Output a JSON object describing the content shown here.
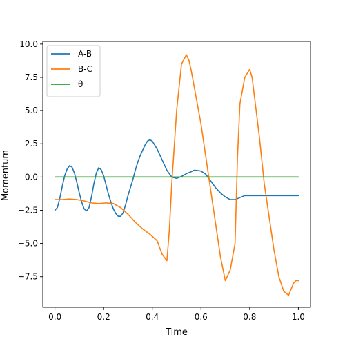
{
  "chart_data": {
    "type": "line",
    "title": "",
    "xlabel": "Time",
    "ylabel": "Momentum",
    "xlim": [
      -0.05,
      1.05
    ],
    "ylim": [
      -9.8,
      10.2
    ],
    "xticks": [
      {
        "value": 0.0,
        "label": "0.0"
      },
      {
        "value": 0.2,
        "label": "0.2"
      },
      {
        "value": 0.4,
        "label": "0.4"
      },
      {
        "value": 0.6,
        "label": "0.6"
      },
      {
        "value": 0.8,
        "label": "0.8"
      },
      {
        "value": 1.0,
        "label": "1.0"
      }
    ],
    "yticks": [
      {
        "value": -7.5,
        "label": "−7.5"
      },
      {
        "value": -5.0,
        "label": "−5.0"
      },
      {
        "value": -2.5,
        "label": "−2.5"
      },
      {
        "value": 0.0,
        "label": "0.0"
      },
      {
        "value": 2.5,
        "label": "2.5"
      },
      {
        "value": 5.0,
        "label": "5.0"
      },
      {
        "value": 7.5,
        "label": "7.5"
      },
      {
        "value": 10.0,
        "label": "10.0"
      }
    ],
    "grid": false,
    "legend_position": "top-left",
    "series": [
      {
        "name": "A-B",
        "color": "#1f77b4",
        "x": [
          0.0,
          0.01,
          0.02,
          0.03,
          0.04,
          0.05,
          0.06,
          0.07,
          0.08,
          0.09,
          0.1,
          0.11,
          0.12,
          0.13,
          0.14,
          0.15,
          0.16,
          0.17,
          0.18,
          0.19,
          0.2,
          0.21,
          0.22,
          0.23,
          0.24,
          0.25,
          0.26,
          0.27,
          0.28,
          0.29,
          0.3,
          0.31,
          0.32,
          0.33,
          0.34,
          0.35,
          0.36,
          0.37,
          0.38,
          0.39,
          0.4,
          0.42,
          0.44,
          0.46,
          0.48,
          0.5,
          0.52,
          0.54,
          0.56,
          0.57,
          0.58,
          0.6,
          0.62,
          0.64,
          0.66,
          0.68,
          0.7,
          0.72,
          0.74,
          0.76,
          0.78,
          0.8,
          0.82,
          0.84,
          0.86,
          0.88,
          0.9,
          0.92,
          0.94,
          0.96,
          0.98,
          1.0
        ],
        "y": [
          -2.5,
          -2.3,
          -1.6,
          -0.7,
          0.1,
          0.6,
          0.85,
          0.75,
          0.3,
          -0.4,
          -1.2,
          -1.9,
          -2.4,
          -2.55,
          -2.3,
          -1.5,
          -0.5,
          0.3,
          0.7,
          0.55,
          0.1,
          -0.6,
          -1.3,
          -1.9,
          -2.4,
          -2.75,
          -2.95,
          -2.95,
          -2.7,
          -2.1,
          -1.4,
          -0.8,
          -0.2,
          0.5,
          1.1,
          1.6,
          2.0,
          2.4,
          2.7,
          2.8,
          2.7,
          2.1,
          1.3,
          0.5,
          0.0,
          -0.1,
          0.05,
          0.25,
          0.4,
          0.5,
          0.5,
          0.45,
          0.2,
          -0.3,
          -0.8,
          -1.2,
          -1.5,
          -1.7,
          -1.7,
          -1.55,
          -1.4,
          -1.4,
          -1.4,
          -1.4,
          -1.4,
          -1.4,
          -1.4,
          -1.4,
          -1.4,
          -1.4,
          -1.4,
          -1.4
        ]
      },
      {
        "name": "B-C",
        "color": "#ff7f0e",
        "x": [
          0.0,
          0.03,
          0.06,
          0.09,
          0.12,
          0.15,
          0.18,
          0.21,
          0.24,
          0.27,
          0.3,
          0.33,
          0.36,
          0.39,
          0.42,
          0.44,
          0.46,
          0.47,
          0.48,
          0.5,
          0.52,
          0.54,
          0.55,
          0.56,
          0.58,
          0.6,
          0.62,
          0.64,
          0.66,
          0.68,
          0.7,
          0.72,
          0.74,
          0.75,
          0.76,
          0.78,
          0.8,
          0.81,
          0.82,
          0.84,
          0.86,
          0.88,
          0.9,
          0.92,
          0.94,
          0.96,
          0.98,
          0.99,
          1.0
        ],
        "y": [
          -1.7,
          -1.7,
          -1.65,
          -1.7,
          -1.8,
          -1.95,
          -2.0,
          -1.95,
          -2.0,
          -2.3,
          -2.8,
          -3.4,
          -3.9,
          -4.3,
          -4.8,
          -5.8,
          -6.3,
          -4.0,
          -0.5,
          5.0,
          8.5,
          9.2,
          8.8,
          8.0,
          6.0,
          4.0,
          1.5,
          -1.0,
          -3.5,
          -6.0,
          -7.8,
          -7.0,
          -5.0,
          1.5,
          5.5,
          7.5,
          8.1,
          7.5,
          6.0,
          3.0,
          -0.5,
          -3.0,
          -5.5,
          -7.5,
          -8.6,
          -8.9,
          -8.0,
          -7.8,
          -7.8
        ]
      },
      {
        "name": "θ",
        "color": "#2ca02c",
        "x": [
          0.0,
          1.0
        ],
        "y": [
          0.0,
          0.0
        ]
      }
    ]
  }
}
